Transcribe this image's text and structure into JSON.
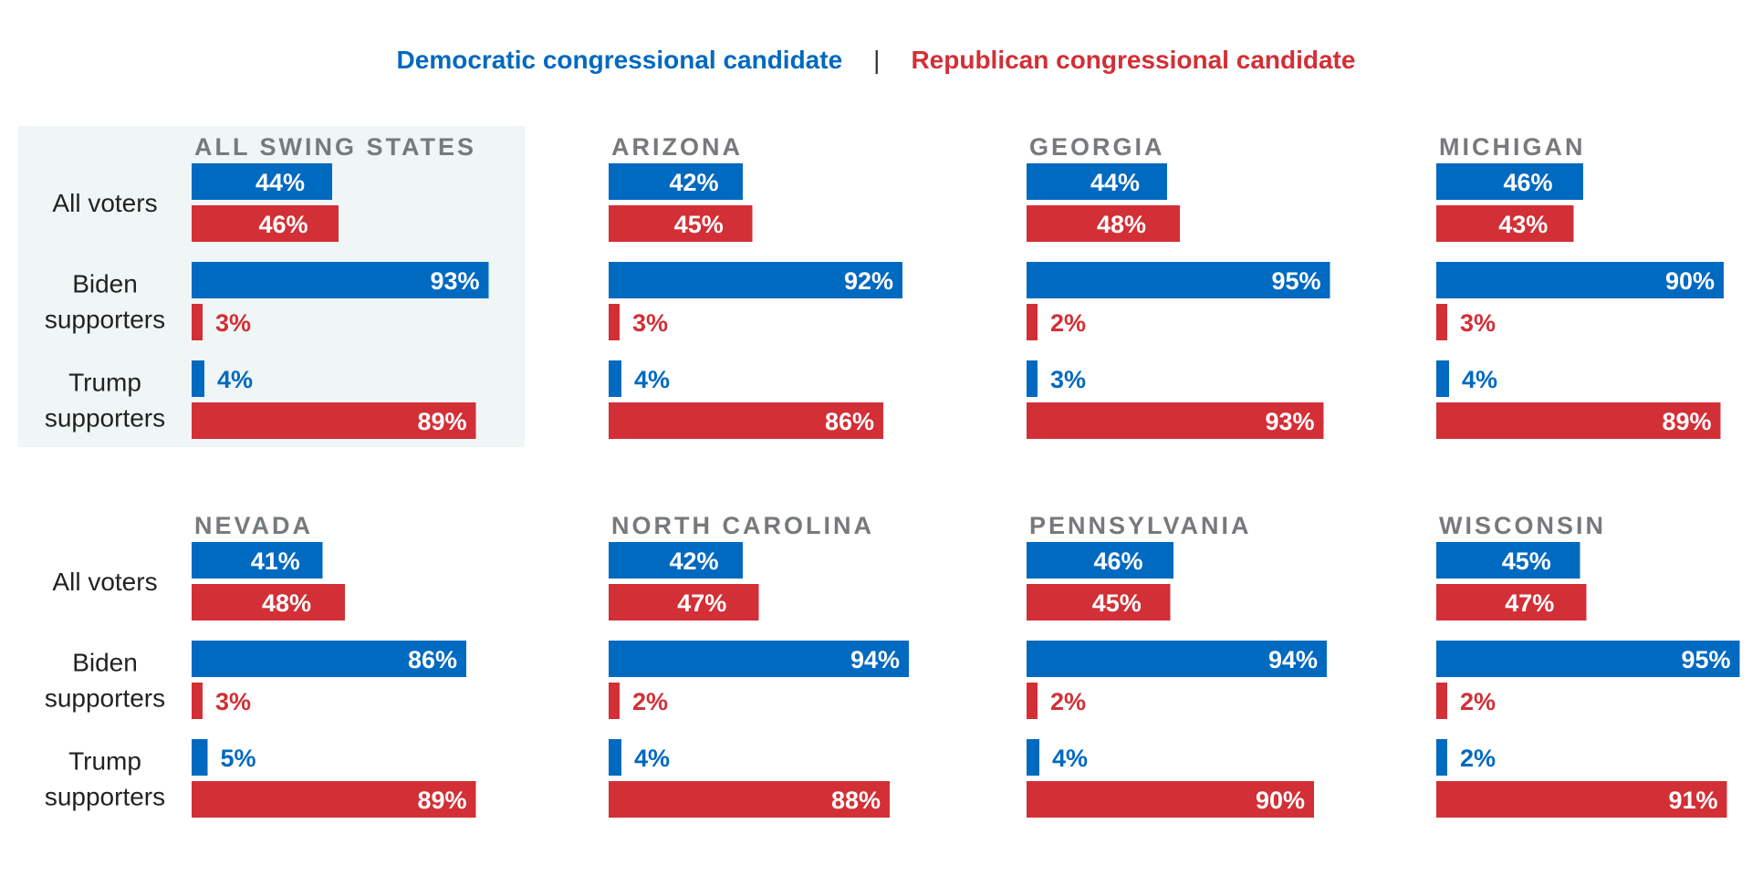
{
  "legend": {
    "dem": "Democratic congressional candidate",
    "separator": "|",
    "rep": "Republican congressional candidate"
  },
  "colors": {
    "dem": "#0069c0",
    "rep": "#d32f36",
    "state_label": "#757a7c",
    "highlight_panel": "#eff6f5",
    "row_label": "#222222"
  },
  "row_labels": [
    [
      "All voters"
    ],
    [
      "Biden",
      "supporters"
    ],
    [
      "Trump",
      "supporters"
    ]
  ],
  "chart_data": {
    "type": "bar",
    "orientation": "horizontal",
    "unit": "%",
    "series": [
      {
        "name": "Democratic congressional candidate",
        "key": "dem"
      },
      {
        "name": "Republican congressional candidate",
        "key": "rep"
      }
    ],
    "categories": [
      "All voters",
      "Biden supporters",
      "Trump supporters"
    ],
    "panels": [
      {
        "title": "ALL SWING STATES",
        "highlight": true,
        "dem": [
          44,
          93,
          4
        ],
        "rep": [
          46,
          3,
          89
        ]
      },
      {
        "title": "ARIZONA",
        "dem": [
          42,
          92,
          4
        ],
        "rep": [
          45,
          3,
          86
        ]
      },
      {
        "title": "GEORGIA",
        "dem": [
          44,
          95,
          3
        ],
        "rep": [
          48,
          2,
          93
        ]
      },
      {
        "title": "MICHIGAN",
        "dem": [
          46,
          90,
          4
        ],
        "rep": [
          43,
          3,
          89
        ]
      },
      {
        "title": "NEVADA",
        "dem": [
          41,
          86,
          5
        ],
        "rep": [
          48,
          3,
          89
        ]
      },
      {
        "title": "NORTH CAROLINA",
        "dem": [
          42,
          94,
          4
        ],
        "rep": [
          47,
          2,
          88
        ]
      },
      {
        "title": "PENNSYLVANIA",
        "dem": [
          46,
          94,
          4
        ],
        "rep": [
          45,
          2,
          90
        ]
      },
      {
        "title": "WISCONSIN",
        "dem": [
          45,
          95,
          2
        ],
        "rep": [
          47,
          2,
          91
        ]
      }
    ]
  }
}
